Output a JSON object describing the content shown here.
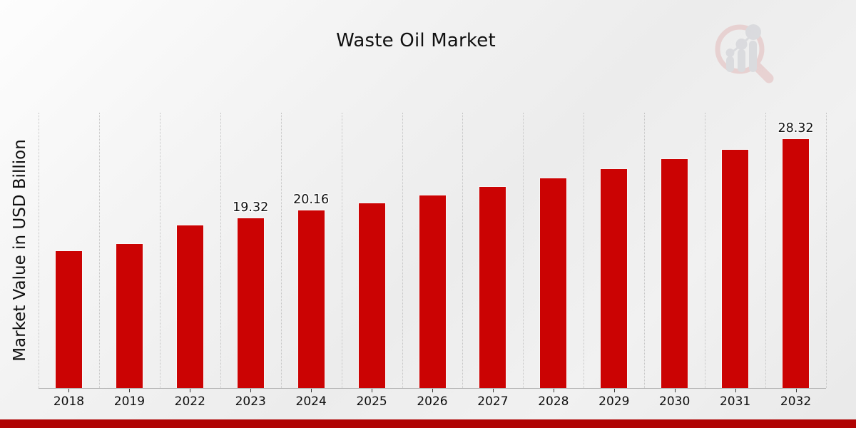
{
  "chart_data": {
    "type": "bar",
    "title": "Waste Oil Market",
    "xlabel": "",
    "ylabel": "Market Value in USD Billion",
    "categories": [
      "2018",
      "2019",
      "2022",
      "2023",
      "2024",
      "2025",
      "2026",
      "2027",
      "2028",
      "2029",
      "2030",
      "2031",
      "2032"
    ],
    "values": [
      15.57,
      16.35,
      18.52,
      19.32,
      20.16,
      21.04,
      21.92,
      22.87,
      23.87,
      24.91,
      25.99,
      27.12,
      28.32
    ],
    "data_labels": {
      "2023": "19.32",
      "2024": "20.16",
      "2032": "28.32"
    },
    "ylim": [
      0,
      31.3
    ],
    "grid": "vertical-dotted",
    "legend": "none",
    "bar_color": "#cb0303"
  },
  "colors": {
    "bar": "#cb0303",
    "bottom_strip": "#b00404",
    "gridline": "#c5c5c5",
    "axis_line": "#b5b5b5",
    "tick": "#3a3a3a",
    "logo_red": "#e2b6b6",
    "logo_gray": "#c7c9cf"
  },
  "logo": {
    "name": "market-research-future-watermark"
  }
}
